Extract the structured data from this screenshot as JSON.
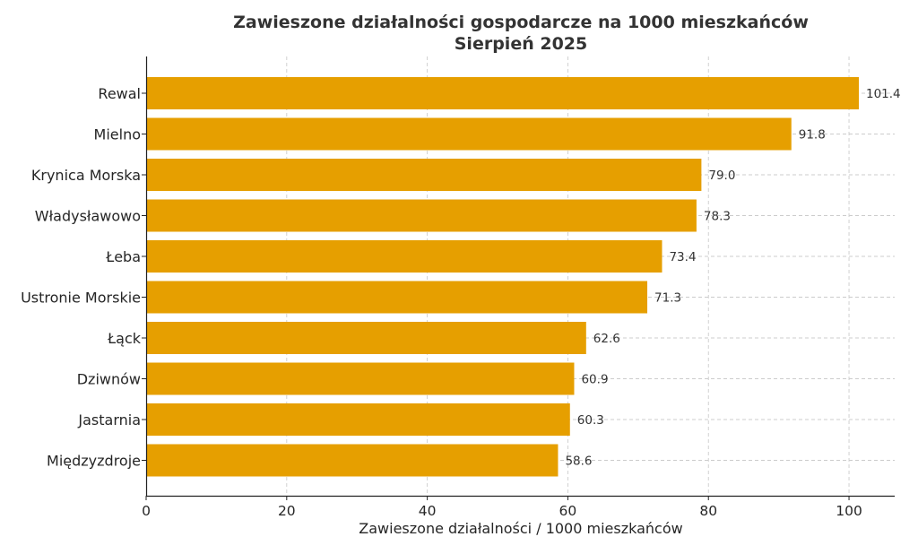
{
  "chart_data": {
    "type": "bar",
    "orientation": "horizontal",
    "title": "Zawieszone działalności gospodarcze na 1000 mieszkańców",
    "subtitle": "Sierpień 2025",
    "xlabel": "Zawieszone działalności / 1000 mieszkańców",
    "ylabel": "",
    "xlim": [
      0,
      106.5
    ],
    "xticks": [
      "0",
      "20",
      "40",
      "60",
      "80",
      "100"
    ],
    "grid": true,
    "bar_color": "#E69F00",
    "categories": [
      "Rewal",
      "Mielno",
      "Krynica Morska",
      "Władysławowo",
      "Łeba",
      "Ustronie Morskie",
      "Łąck",
      "Dziwnów",
      "Jastarnia",
      "Międzyzdroje"
    ],
    "values": [
      101.4,
      91.8,
      79.0,
      78.3,
      73.4,
      71.3,
      62.6,
      60.9,
      60.3,
      58.6
    ],
    "value_labels": [
      "101.4",
      "91.8",
      "79.0",
      "78.3",
      "73.4",
      "71.3",
      "62.6",
      "60.9",
      "60.3",
      "58.6"
    ]
  }
}
